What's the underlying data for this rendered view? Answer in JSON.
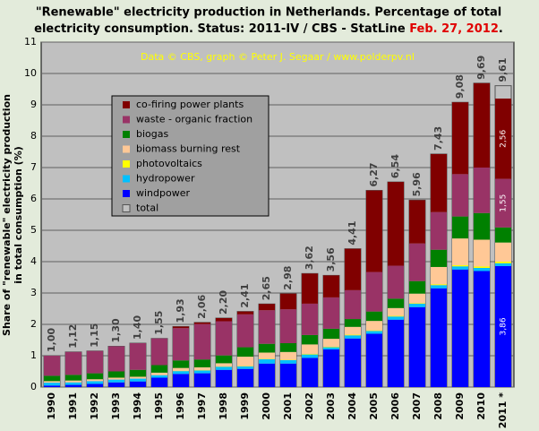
{
  "chart_data": {
    "type": "stacked_bar",
    "title_lines": [
      "\"Renewable\" electricity production in Netherlands. Percentage of total",
      "electricity consumption. Status: 2011-IV / CBS - StatLine "
    ],
    "title_date": "Feb. 27, 2012",
    "title_end": ".",
    "subtitle": "Data © CBS, graph © Peter J. Segaar / www.polderpv.nl",
    "y_label_lines": [
      "Share of \"renewable\" electricity production",
      "in total consumption (%)"
    ],
    "categories": [
      "1990",
      "1991",
      "1992",
      "1993",
      "1994",
      "1995",
      "1996",
      "1997",
      "1998",
      "1999",
      "2000",
      "2001",
      "2002",
      "2003",
      "2004",
      "2005",
      "2006",
      "2007",
      "2008",
      "2009",
      "2010",
      "2011 *"
    ],
    "ylim": [
      0,
      11
    ],
    "yticks": [
      0,
      1,
      2,
      3,
      4,
      5,
      6,
      7,
      8,
      9,
      10,
      11
    ],
    "grid": true,
    "series": [
      {
        "name": "windpower",
        "color": "#0000ff",
        "values": [
          0.05,
          0.07,
          0.1,
          0.15,
          0.18,
          0.3,
          0.42,
          0.44,
          0.55,
          0.58,
          0.75,
          0.75,
          0.93,
          1.2,
          1.55,
          1.7,
          2.15,
          2.55,
          3.15,
          3.75,
          3.7,
          3.86
        ],
        "value_labels": [
          null,
          null,
          null,
          null,
          null,
          null,
          null,
          null,
          null,
          null,
          null,
          null,
          null,
          null,
          null,
          null,
          null,
          null,
          null,
          null,
          null,
          "3,86"
        ]
      },
      {
        "name": "hydropower",
        "color": "#00c0ff",
        "values": [
          0.09,
          0.08,
          0.09,
          0.09,
          0.09,
          0.08,
          0.09,
          0.09,
          0.1,
          0.08,
          0.14,
          0.11,
          0.11,
          0.07,
          0.1,
          0.09,
          0.1,
          0.11,
          0.1,
          0.1,
          0.1,
          0.09
        ]
      },
      {
        "name": "photovoltaics",
        "color": "#ffff00",
        "values": [
          0,
          0,
          0,
          0,
          0,
          0,
          0.01,
          0.01,
          0.01,
          0.01,
          0.01,
          0.01,
          0.02,
          0.02,
          0.02,
          0.02,
          0.02,
          0.02,
          0.03,
          0.04,
          0.05,
          0.05
        ]
      },
      {
        "name": "biomass burning rest",
        "color": "#ffc896",
        "values": [
          0.05,
          0.06,
          0.06,
          0.06,
          0.06,
          0.08,
          0.09,
          0.09,
          0.1,
          0.3,
          0.2,
          0.25,
          0.3,
          0.25,
          0.25,
          0.3,
          0.25,
          0.3,
          0.55,
          0.85,
          0.85,
          0.61
        ]
      },
      {
        "name": "biogas",
        "color": "#008000",
        "values": [
          0.17,
          0.18,
          0.19,
          0.2,
          0.22,
          0.24,
          0.24,
          0.25,
          0.25,
          0.3,
          0.28,
          0.28,
          0.3,
          0.32,
          0.25,
          0.3,
          0.3,
          0.4,
          0.55,
          0.7,
          0.85,
          0.48
        ]
      },
      {
        "name": "waste - organic fraction",
        "color": "#993366",
        "values": [
          0.64,
          0.73,
          0.71,
          0.8,
          0.85,
          0.85,
          1.03,
          1.13,
          1.09,
          1.05,
          1.07,
          1.08,
          1.0,
          1.0,
          0.92,
          1.26,
          1.05,
          1.2,
          1.2,
          1.35,
          1.45,
          1.55
        ],
        "value_labels": [
          null,
          null,
          null,
          null,
          null,
          null,
          null,
          null,
          null,
          null,
          null,
          null,
          null,
          null,
          null,
          null,
          null,
          null,
          null,
          null,
          null,
          "1,55"
        ]
      },
      {
        "name": "co-firing power plants",
        "color": "#800000",
        "values": [
          0,
          0,
          0,
          0,
          0,
          0,
          0.05,
          0.05,
          0.1,
          0.09,
          0.2,
          0.5,
          0.96,
          0.7,
          1.32,
          2.6,
          2.67,
          1.38,
          1.85,
          2.29,
          2.69,
          2.56
        ],
        "value_labels": [
          null,
          null,
          null,
          null,
          null,
          null,
          null,
          null,
          null,
          null,
          null,
          null,
          null,
          null,
          null,
          null,
          null,
          null,
          null,
          null,
          null,
          "2,56"
        ]
      },
      {
        "name": "total",
        "color": "#c0c0c0",
        "values": [
          1.0,
          1.12,
          1.15,
          1.3,
          1.4,
          1.55,
          1.93,
          2.06,
          2.2,
          2.41,
          2.65,
          2.98,
          3.62,
          3.56,
          4.41,
          6.27,
          6.54,
          5.96,
          7.43,
          9.08,
          9.69,
          9.61
        ],
        "value_labels": [
          "1,00",
          "1,12",
          "1,15",
          "1,30",
          "1,40",
          "1,55",
          "1,93",
          "2,06",
          "2,20",
          "2,41",
          "2,65",
          "2,98",
          "3,62",
          "3,56",
          "4,41",
          "6,27",
          "6,54",
          "5,96",
          "7,43",
          "9,08",
          "9,69",
          "9,61"
        ]
      }
    ]
  }
}
